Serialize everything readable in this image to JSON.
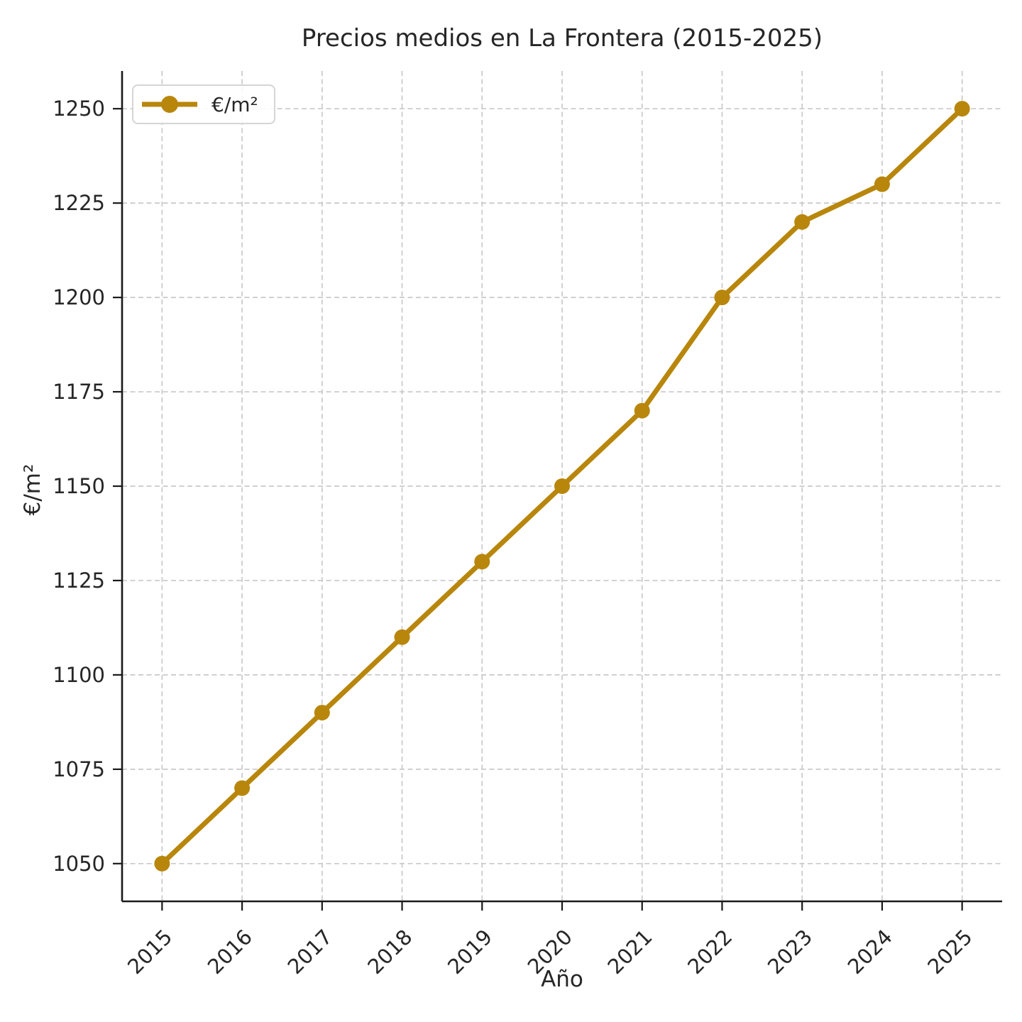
{
  "chart_data": {
    "type": "line",
    "title": "Precios medios en La Frontera (2015-2025)",
    "xlabel": "Año",
    "ylabel": "€/m²",
    "categories": [
      2015,
      2016,
      2017,
      2018,
      2019,
      2020,
      2021,
      2022,
      2023,
      2024,
      2025
    ],
    "series": [
      {
        "name": "€/m²",
        "values": [
          1050,
          1070,
          1090,
          1110,
          1130,
          1150,
          1170,
          1200,
          1220,
          1230,
          1250
        ],
        "color": "#B8860B"
      }
    ],
    "yticks": [
      1050,
      1075,
      1100,
      1125,
      1150,
      1175,
      1200,
      1225,
      1250
    ],
    "xlim": [
      2014.5,
      2025.5
    ],
    "ylim": [
      1040,
      1260
    ],
    "grid": true,
    "grid_style": "dashed",
    "legend_position": "upper left",
    "colors": {
      "line": "#B8860B",
      "grid": "#c9c9c9",
      "spine": "#1a1a1a",
      "text": "#262626",
      "background": "#ffffff"
    }
  }
}
